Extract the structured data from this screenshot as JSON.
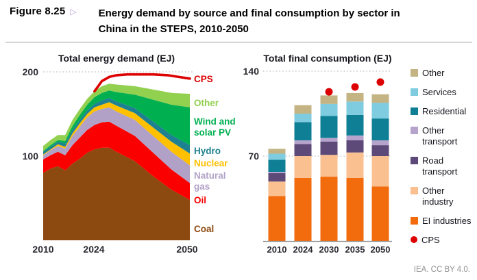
{
  "figure": {
    "label": "Figure 8.25",
    "marker": "▷",
    "marker_color": "#b29bd0",
    "title": "Energy demand by source and final consumption by sector in China in the STEPS, 2010-2050",
    "credit": "IEA. CC BY 4.0."
  },
  "chart_data": [
    {
      "id": "total-energy-demand",
      "type": "area",
      "stacked": true,
      "title": "Total energy demand (EJ)",
      "ylim": [
        0,
        200
      ],
      "y_ticks": [
        200,
        100
      ],
      "x_ticks": [
        2010,
        2024,
        2050
      ],
      "grid": "dotted line at y=200 only",
      "legend_position": "right",
      "x": [
        2010,
        2012,
        2014,
        2016,
        2018,
        2020,
        2022,
        2024,
        2026,
        2028,
        2030,
        2035,
        2040,
        2045,
        2050
      ],
      "series": [
        {
          "key": "coal",
          "name": "Coal",
          "color": "#8d4a10",
          "values": [
            80,
            85,
            88,
            83,
            91,
            97,
            104,
            108,
            110,
            110,
            105,
            94,
            76,
            60,
            48
          ]
        },
        {
          "key": "oil",
          "name": "Oil",
          "color": "#fb0000",
          "values": [
            16,
            16,
            17,
            18,
            22,
            25,
            27,
            29,
            30,
            31,
            31,
            30,
            28,
            24,
            20
          ]
        },
        {
          "key": "natural-gas",
          "name": "Natural gas",
          "color": "#b2a1c7",
          "values": [
            5,
            6,
            7,
            8,
            11,
            13,
            15,
            16,
            16,
            17,
            17,
            19,
            20,
            21,
            21
          ]
        },
        {
          "key": "nuclear",
          "name": "Nuclear",
          "color": "#ffc000",
          "values": [
            1,
            1,
            2,
            2,
            3,
            4,
            4,
            5,
            5,
            6,
            7,
            8,
            10,
            12,
            14
          ]
        },
        {
          "key": "hydro",
          "name": "Hydro",
          "color": "#1e8191",
          "values": [
            3,
            3,
            3,
            4,
            4,
            4,
            4,
            4,
            5,
            5,
            5,
            6,
            7,
            8,
            10
          ]
        },
        {
          "key": "wind-solar",
          "name": "Wind and solar PV",
          "color": "#00b050",
          "values": [
            1,
            2,
            2,
            3,
            5,
            6,
            7,
            8,
            9,
            9,
            11,
            16,
            26,
            36,
            45
          ]
        },
        {
          "key": "other",
          "name": "Other",
          "color": "#92d050",
          "values": [
            6,
            6,
            6,
            7,
            7,
            7,
            7,
            7,
            8,
            8,
            9,
            10,
            12,
            14,
            16
          ]
        }
      ],
      "cps_line": {
        "name": "CPS",
        "color": "#dd0000",
        "x": [
          2024,
          2025,
          2026,
          2028,
          2030,
          2033,
          2036,
          2040,
          2044,
          2047,
          2050
        ],
        "values": [
          177,
          183,
          189,
          194,
          196,
          197,
          197,
          197,
          196,
          194,
          192
        ]
      },
      "legend": [
        {
          "label": "CPS",
          "color": "#dd0000"
        },
        {
          "label": "Other",
          "color": "#92d050"
        },
        {
          "label": "Wind and solar PV",
          "color": "#00b050"
        },
        {
          "label": "Hydro",
          "color": "#1e8191"
        },
        {
          "label": "Nuclear",
          "color": "#ffc000"
        },
        {
          "label": "Natural gas",
          "color": "#b2a1c7"
        },
        {
          "label": "Oil",
          "color": "#fb0000"
        },
        {
          "label": "Coal",
          "color": "#8d4a10"
        }
      ]
    },
    {
      "id": "total-final-consumption",
      "type": "bar",
      "stacked": true,
      "title": "Total final consumption (EJ)",
      "ylim": [
        0,
        140
      ],
      "y_ticks": [
        140,
        70
      ],
      "grid": "dotted lines at y=140 and y=70",
      "legend_position": "right",
      "categories": [
        "2010",
        "2024",
        "2030",
        "2035",
        "2050"
      ],
      "series": [
        {
          "key": "ei-industries",
          "name": "EI industries",
          "color": "#f26b0c",
          "values": [
            37,
            52,
            53,
            52,
            45
          ]
        },
        {
          "key": "other-industry",
          "name": "Other industry",
          "color": "#fac090",
          "values": [
            12,
            18,
            18,
            21,
            25
          ]
        },
        {
          "key": "road-transport",
          "name": "Road transport",
          "color": "#5d4a78",
          "values": [
            7,
            10,
            11,
            10,
            9
          ]
        },
        {
          "key": "other-transport",
          "name": "Other transport",
          "color": "#b7a4cd",
          "values": [
            1,
            3,
            3,
            4,
            4
          ]
        },
        {
          "key": "residential",
          "name": "Residential",
          "color": "#0f7f96",
          "values": [
            10,
            15,
            18,
            17,
            18
          ]
        },
        {
          "key": "services",
          "name": "Services",
          "color": "#7fcbdf",
          "values": [
            5,
            7,
            10,
            11,
            13
          ]
        },
        {
          "key": "other",
          "name": "Other",
          "color": "#c4b483",
          "values": [
            4,
            7,
            7,
            7,
            7
          ]
        }
      ],
      "cps_points": {
        "name": "CPS",
        "color": "#dd0000",
        "points": [
          {
            "category": "2030",
            "value": 123
          },
          {
            "category": "2035",
            "value": 127
          },
          {
            "category": "2050",
            "value": 131
          }
        ]
      },
      "legend": [
        {
          "label": "Other",
          "color": "#c4b483"
        },
        {
          "label": "Services",
          "color": "#7fcbdf"
        },
        {
          "label": "Residential",
          "color": "#0f7f96"
        },
        {
          "label": "Other transport",
          "color": "#b7a4cd"
        },
        {
          "label": "Road transport",
          "color": "#5d4a78"
        },
        {
          "label": "Other industry",
          "color": "#fac090"
        },
        {
          "label": "EI industries",
          "color": "#f26b0c"
        },
        {
          "label": "CPS",
          "color": "#dd0000",
          "shape": "circle"
        }
      ]
    }
  ]
}
